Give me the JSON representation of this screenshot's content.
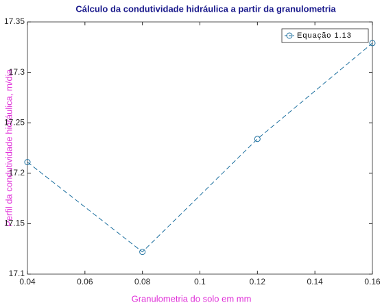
{
  "chart_data": {
    "type": "line",
    "title": "Cálculo da condutividade hidráulica a partir da granulometria",
    "xlabel": "Granulometria do solo em mm",
    "ylabel": "Perfil da condutividade hidráulica, m/dia",
    "x": [
      0.04,
      0.08,
      0.12,
      0.16
    ],
    "series": [
      {
        "name": "Equação 1.13",
        "color": "#1a6e9e",
        "values": [
          17.211,
          17.122,
          17.234,
          17.329
        ]
      }
    ],
    "xlim": [
      0.04,
      0.16
    ],
    "xticks": [
      0.04,
      0.06,
      0.08,
      0.1,
      0.12,
      0.14,
      0.16
    ],
    "ylim": [
      17.1,
      17.35
    ],
    "yticks": [
      17.1,
      17.15,
      17.2,
      17.25,
      17.3,
      17.35
    ],
    "grid": false,
    "legend": "northeast",
    "line_style": "dashed",
    "marker": "circle"
  }
}
